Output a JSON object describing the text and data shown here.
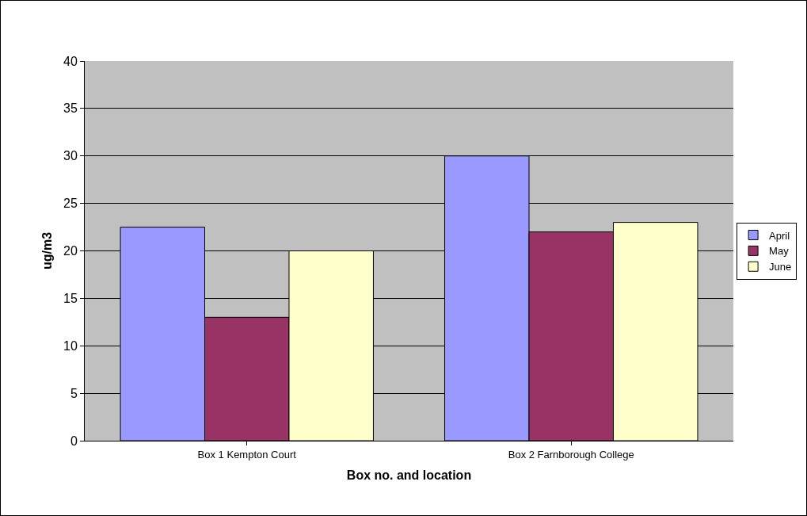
{
  "chart_data": {
    "type": "bar",
    "xlabel": "Box no. and location",
    "ylabel": "ug/m3",
    "categories": [
      "Box 1 Kempton Court",
      "Box 2 Farnborough College"
    ],
    "series": [
      {
        "name": "April",
        "color": "#9999ff",
        "values": [
          22.5,
          30
        ]
      },
      {
        "name": "May",
        "color": "#993366",
        "values": [
          13,
          22
        ]
      },
      {
        "name": "June",
        "color": "#ffffcc",
        "values": [
          20,
          23
        ]
      }
    ],
    "ylim": [
      0,
      40
    ],
    "yticks": [
      0,
      5,
      10,
      15,
      20,
      25,
      30,
      35,
      40
    ],
    "grid": "y",
    "legend": "right"
  }
}
